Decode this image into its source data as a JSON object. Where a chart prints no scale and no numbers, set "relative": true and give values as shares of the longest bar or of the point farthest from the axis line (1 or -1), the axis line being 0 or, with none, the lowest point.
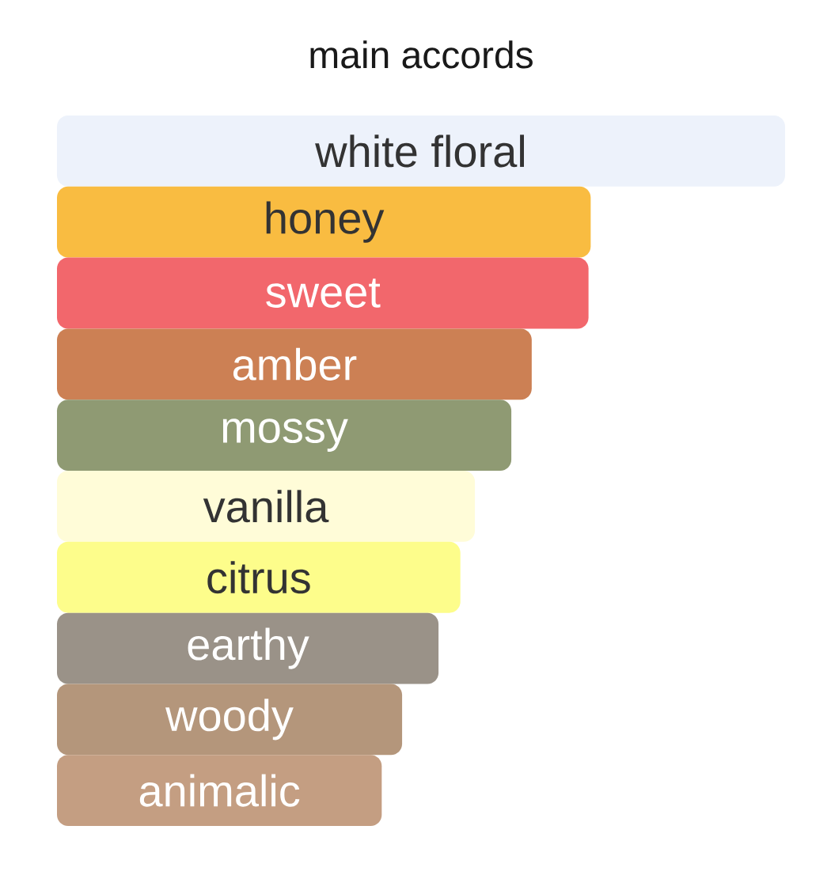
{
  "chart_data": {
    "type": "bar",
    "orientation": "horizontal",
    "relative": true,
    "title": "main accords",
    "categories": [
      "white floral",
      "honey",
      "sweet",
      "amber",
      "mossy",
      "vanilla",
      "citrus",
      "earthy",
      "woody",
      "animalic"
    ],
    "values": [
      1,
      0.733,
      0.73,
      0.652,
      0.624,
      0.574,
      0.554,
      0.524,
      0.474,
      0.446
    ],
    "colors": [
      "#edf2fb",
      "#f9bc41",
      "#f2676c",
      "#cc8054",
      "#8f9a73",
      "#fffcd8",
      "#fdfd8b",
      "#9a9288",
      "#b4967b",
      "#c49e82"
    ]
  }
}
